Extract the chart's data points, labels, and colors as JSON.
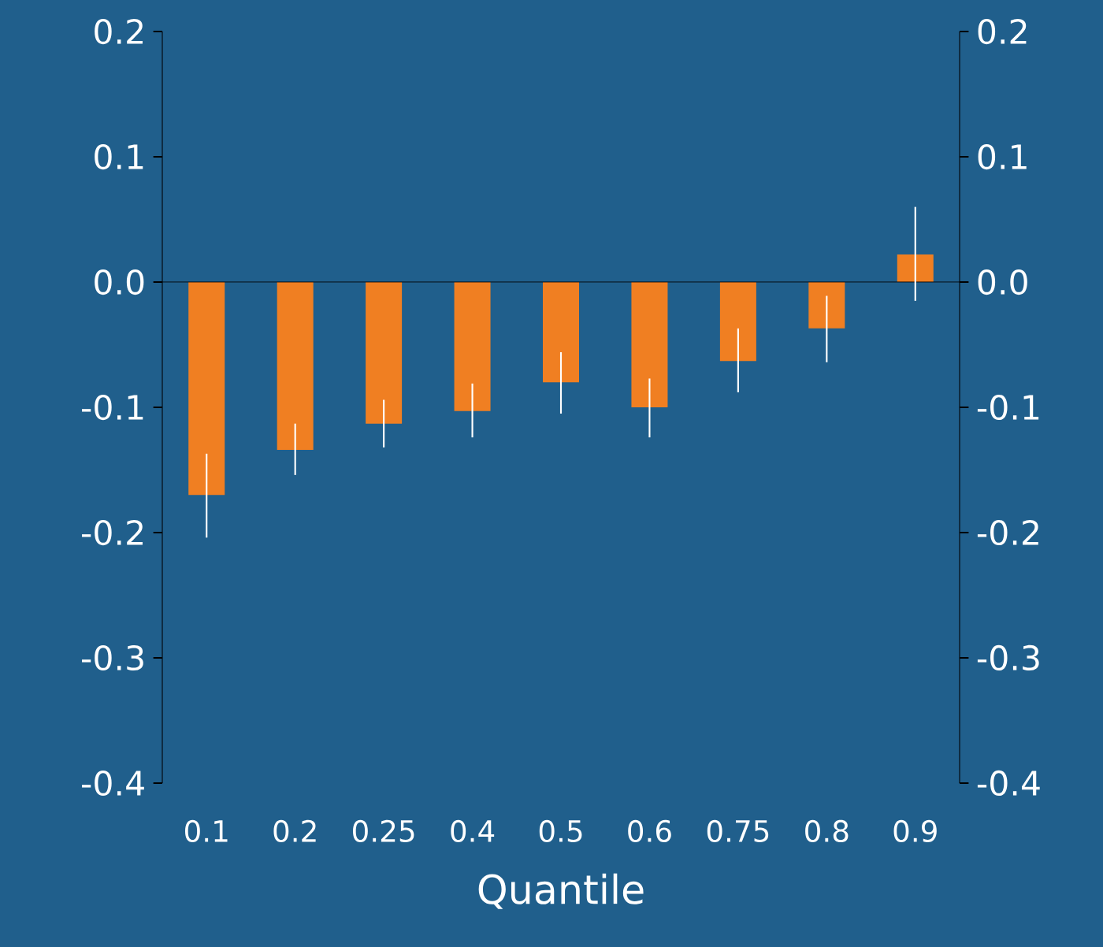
{
  "chart_data": {
    "type": "bar",
    "xlabel": "Quantile",
    "categories": [
      "0.1",
      "0.2",
      "0.25",
      "0.4",
      "0.5",
      "0.6",
      "0.75",
      "0.8",
      "0.9"
    ],
    "values": [
      -0.17,
      -0.134,
      -0.113,
      -0.103,
      -0.08,
      -0.1,
      -0.063,
      -0.037,
      0.022
    ],
    "color": "#f07f22",
    "errors": [
      [
        -0.204,
        -0.137
      ],
      [
        -0.154,
        -0.113
      ],
      [
        -0.132,
        -0.094
      ],
      [
        -0.124,
        -0.081
      ],
      [
        -0.105,
        -0.056
      ],
      [
        -0.124,
        -0.077
      ],
      [
        -0.088,
        -0.037
      ],
      [
        -0.064,
        -0.011
      ],
      [
        -0.015,
        0.06
      ]
    ],
    "ylim": [
      -0.4,
      0.2
    ],
    "yticks": [
      0.2,
      0.1,
      {
        "value": 0.0,
        "label": "0.0"
      },
      -0.1,
      -0.2,
      -0.3,
      -0.4
    ],
    "y2lim": [
      -0.4,
      0.2
    ],
    "y2ticks": [
      0.2,
      0.1,
      {
        "value": 0.0,
        "label": "0.0"
      },
      -0.1,
      -0.2,
      -0.3,
      -0.4
    ]
  }
}
